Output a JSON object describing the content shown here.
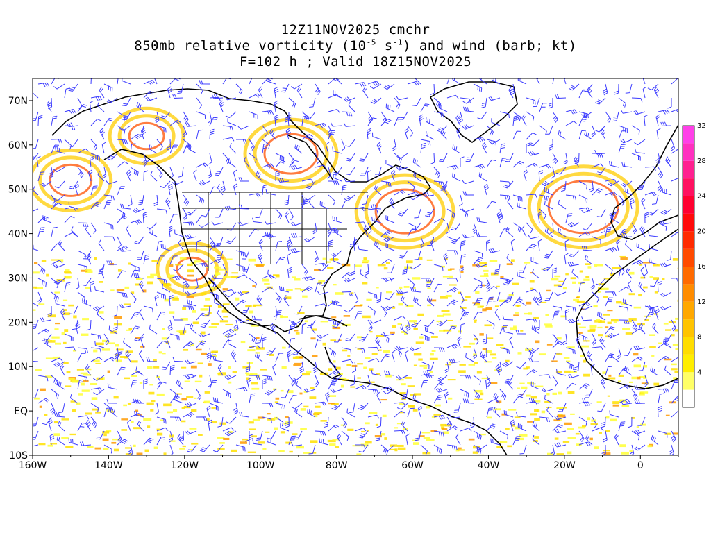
{
  "title": {
    "line1": "12Z11NOV2025 cmchr",
    "line2_prefix": "850mb relative vorticity (10",
    "line2_exp1": "-5",
    "line2_mid": " s",
    "line2_exp2": "-1",
    "line2_suffix": ") and wind (barb; kt)",
    "line3": "F=102 h ; Valid 18Z15NOV2025"
  },
  "map": {
    "lon_range": [
      -160,
      10
    ],
    "lat_range": [
      -10,
      75
    ],
    "lat_ticks": [
      {
        "value": 70,
        "label": "70N"
      },
      {
        "value": 60,
        "label": "60N"
      },
      {
        "value": 50,
        "label": "50N"
      },
      {
        "value": 40,
        "label": "40N"
      },
      {
        "value": 30,
        "label": "30N"
      },
      {
        "value": 20,
        "label": "20N"
      },
      {
        "value": 10,
        "label": "10N"
      },
      {
        "value": 0,
        "label": "EQ"
      },
      {
        "value": -10,
        "label": "10S"
      }
    ],
    "lon_ticks": [
      {
        "value": -160,
        "label": "160W"
      },
      {
        "value": -140,
        "label": "140W"
      },
      {
        "value": -120,
        "label": "120W"
      },
      {
        "value": -100,
        "label": "100W"
      },
      {
        "value": -80,
        "label": "80W"
      },
      {
        "value": -60,
        "label": "60W"
      },
      {
        "value": -40,
        "label": "40W"
      },
      {
        "value": -20,
        "label": "20W"
      },
      {
        "value": 0,
        "label": "0"
      }
    ],
    "wind_barb_color": "#3b3bff",
    "coastline_color": "#000000"
  },
  "colorbar": {
    "labels": [
      "4",
      "8",
      "12",
      "16",
      "20",
      "24",
      "28",
      "32"
    ],
    "colors": [
      "#ffffff",
      "#ffff66",
      "#ffee00",
      "#ffdd00",
      "#ffc400",
      "#ffa800",
      "#ff8c00",
      "#ff6a00",
      "#ff4a00",
      "#ff2a00",
      "#ff0a0a",
      "#ff0030",
      "#ff1060",
      "#ff2090",
      "#ff30c0",
      "#ff40e8"
    ]
  }
}
